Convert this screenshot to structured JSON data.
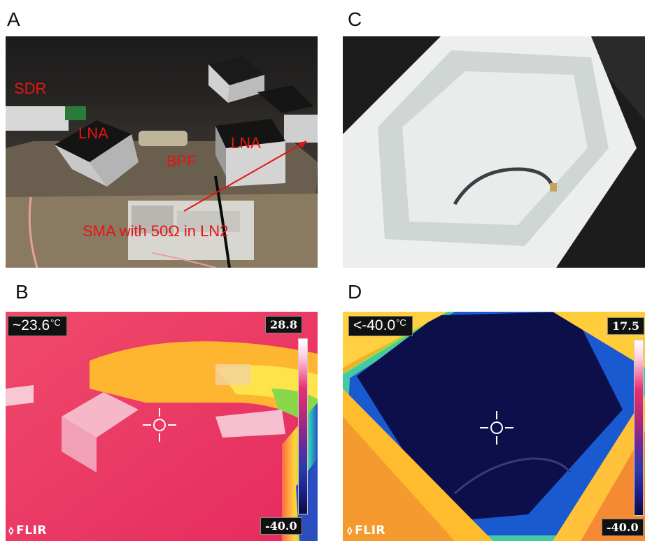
{
  "panels": {
    "A": {
      "label": "A",
      "annotations": {
        "sdr": "SDR",
        "lna_left": "LNA",
        "bpf": "BPF",
        "lna_right": "LNA",
        "sma": "SMA with 50Ω in LN2"
      }
    },
    "B": {
      "label": "B",
      "readout_value": "~23.6",
      "readout_unit": "°C",
      "scale_max": "28.8",
      "scale_min": "-40.0",
      "logo": "FLIR"
    },
    "C": {
      "label": "C"
    },
    "D": {
      "label": "D",
      "readout_value": "<-40.0",
      "readout_unit": "°C",
      "scale_max": "17.5",
      "scale_min": "-40.0",
      "logo": "FLIR"
    }
  },
  "colors": {
    "annotation": "#e41414",
    "thermal_hot": "#ee2a60",
    "thermal_cold": "#0d0f4a"
  },
  "icons": [
    "crosshair-icon",
    "flir-logo-icon",
    "colorbar-icon"
  ]
}
